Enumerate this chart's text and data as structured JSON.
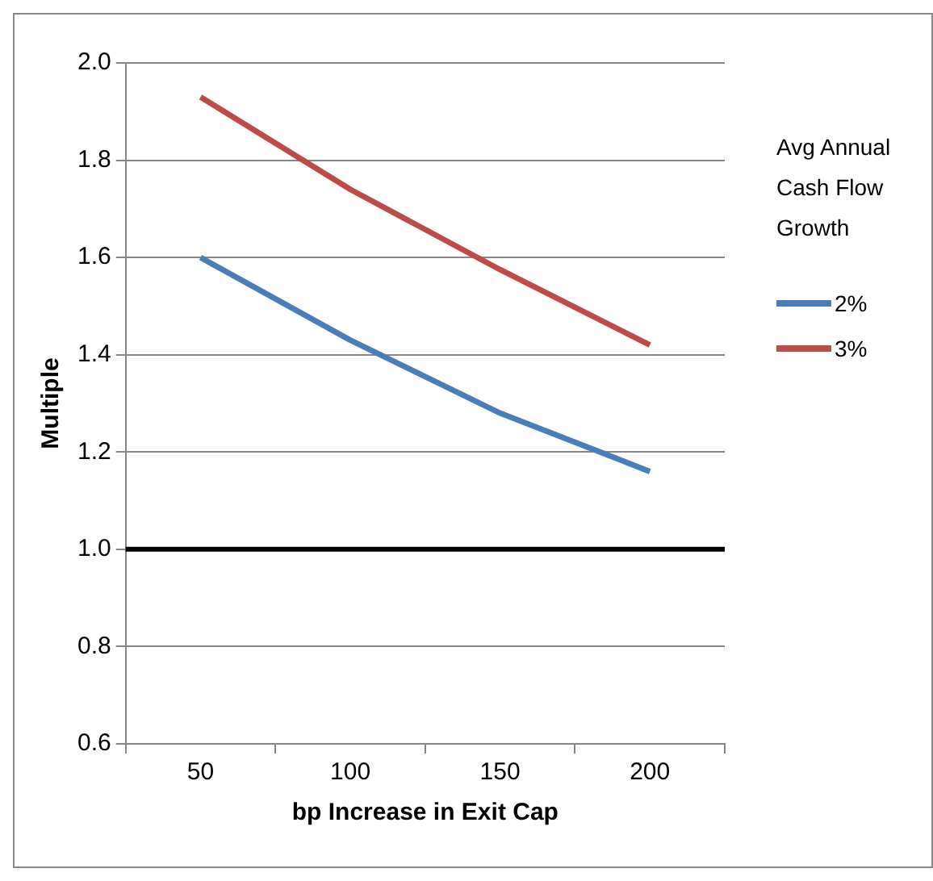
{
  "chart_data": {
    "type": "line",
    "xlabel": "bp Increase in Exit Cap",
    "ylabel": "Multiple",
    "legend_title": "Avg Annual Cash Flow Growth",
    "categories": [
      "50",
      "100",
      "150",
      "200"
    ],
    "series": [
      {
        "name": "2%",
        "color": "#4a7ebb",
        "values": [
          1.6,
          1.43,
          1.28,
          1.16
        ]
      },
      {
        "name": "3%",
        "color": "#be4b48",
        "values": [
          1.93,
          1.74,
          1.575,
          1.42
        ]
      }
    ],
    "ref_lines": [
      {
        "axis": "y",
        "value": 1.0,
        "color": "#000000"
      }
    ],
    "ylim": [
      0.6,
      2.0
    ],
    "yticks": [
      0.6,
      0.8,
      {
        "value": 1,
        "label": "1.0"
      },
      1.2,
      1.4,
      1.6,
      1.8,
      {
        "value": 2,
        "label": "2.0"
      }
    ],
    "grid": "y",
    "legend": "right",
    "marker": "none",
    "line_style": "solid"
  }
}
